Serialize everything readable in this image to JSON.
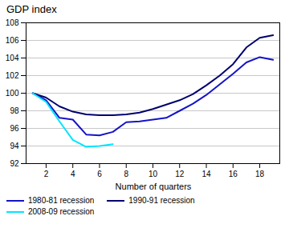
{
  "chart_data": {
    "type": "line",
    "title": "GDP index",
    "xlabel": "Number of quarters",
    "x": [
      1,
      2,
      3,
      4,
      5,
      6,
      7,
      8,
      9,
      10,
      11,
      12,
      13,
      14,
      15,
      16,
      17,
      18,
      19
    ],
    "series": [
      {
        "name": "1980-81 recession",
        "color": "#1414C8",
        "values": [
          100,
          99.2,
          97.2,
          97.0,
          95.3,
          95.2,
          95.6,
          96.7,
          96.8,
          97.0,
          97.2,
          98.0,
          98.8,
          99.8,
          101.0,
          102.2,
          103.5,
          104.1,
          103.8
        ]
      },
      {
        "name": "1990-91 recession",
        "color": "#00006E",
        "values": [
          100,
          99.5,
          98.5,
          97.9,
          97.6,
          97.5,
          97.5,
          97.6,
          97.8,
          98.2,
          98.7,
          99.2,
          99.9,
          100.9,
          102.0,
          103.3,
          105.2,
          106.3,
          106.6
        ]
      },
      {
        "name": "2008-09 recession",
        "color": "#00E5FF",
        "values": [
          100,
          99.0,
          96.8,
          94.7,
          93.9,
          94.0,
          94.2,
          null,
          null,
          null,
          null,
          null,
          null,
          null,
          null,
          null,
          null,
          null,
          null
        ]
      }
    ],
    "xlim": [
      0.5,
      19.5
    ],
    "ylim": [
      92,
      108
    ],
    "xticks": [
      2,
      4,
      6,
      8,
      10,
      12,
      14,
      16,
      18
    ],
    "yticks": [
      92,
      94,
      96,
      98,
      100,
      102,
      104,
      106,
      108
    ],
    "grid": "y",
    "legend": "bottom"
  }
}
